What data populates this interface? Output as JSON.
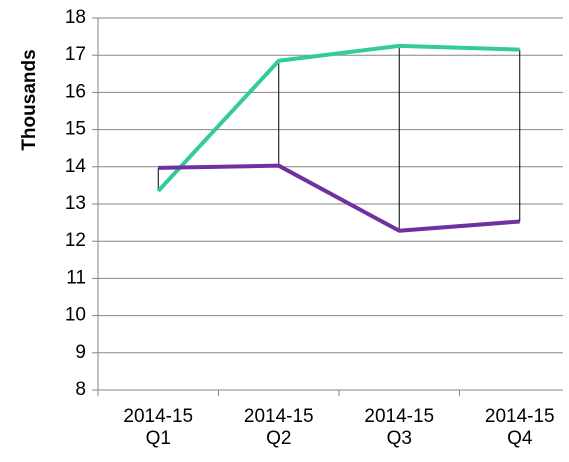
{
  "chart_data": {
    "type": "line",
    "y_axis_label": "Thousands",
    "categories": [
      "2014-15 Q1",
      "2014-15 Q2",
      "2014-15 Q3",
      "2014-15 Q4"
    ],
    "series": [
      {
        "color": "#33cc99",
        "values": [
          13.35,
          16.85,
          17.25,
          17.15
        ]
      },
      {
        "color": "#7030a0",
        "values": [
          13.97,
          14.03,
          12.28,
          12.53
        ]
      }
    ],
    "high_low_lines": true,
    "ylim": [
      8,
      18
    ],
    "yticks": [
      8,
      9,
      10,
      11,
      12,
      13,
      14,
      15,
      16,
      17,
      18
    ],
    "grid": true
  }
}
